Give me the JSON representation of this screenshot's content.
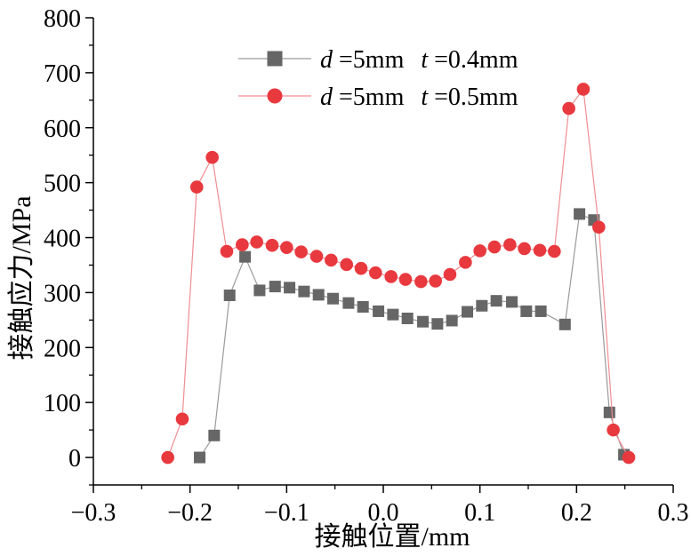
{
  "chart_data": {
    "type": "line",
    "xlabel": "接触位置/mm",
    "ylabel": "接触应力/MPa",
    "xlim": [
      -0.3,
      0.3
    ],
    "ylim": [
      -50,
      800
    ],
    "xticks": [
      "−0.3",
      "−0.2",
      "−0.1",
      "0.0",
      "0.1",
      "0.2",
      "0.3"
    ],
    "yticks": [
      "0",
      "100",
      "200",
      "300",
      "400",
      "500",
      "600",
      "700",
      "800"
    ],
    "legend_position": "top-center",
    "grid": false,
    "series": [
      {
        "name": "d=5mm  t=0.4mm",
        "name_parts": {
          "var1": "d",
          "eq1": "=5mm",
          "var2": "t",
          "eq2": "=0.4mm"
        },
        "color": "#666666",
        "marker": "square",
        "x": [
          -0.19,
          -0.175,
          -0.159,
          -0.143,
          -0.128,
          -0.112,
          -0.097,
          -0.082,
          -0.067,
          -0.052,
          -0.036,
          -0.021,
          -0.005,
          0.01,
          0.025,
          0.041,
          0.056,
          0.071,
          0.087,
          0.102,
          0.117,
          0.133,
          0.148,
          0.163,
          0.188,
          0.203,
          0.218,
          0.234,
          0.249
        ],
        "y": [
          0,
          40,
          295,
          365,
          304,
          311,
          309,
          302,
          296,
          289,
          281,
          274,
          266,
          260,
          253,
          247,
          243,
          249,
          265,
          276,
          285,
          283,
          266,
          266,
          242,
          443,
          432,
          82,
          5
        ]
      },
      {
        "name": "d=5mm  t=0.5mm",
        "name_parts": {
          "var1": "d",
          "eq1": "=5mm",
          "var2": "t",
          "eq2": "=0.5mm"
        },
        "color": "#e8393f",
        "marker": "circle",
        "x": [
          -0.223,
          -0.208,
          -0.193,
          -0.177,
          -0.162,
          -0.146,
          -0.131,
          -0.115,
          -0.1,
          -0.085,
          -0.069,
          -0.054,
          -0.038,
          -0.023,
          -0.008,
          0.008,
          0.023,
          0.039,
          0.054,
          0.069,
          0.085,
          0.1,
          0.115,
          0.131,
          0.146,
          0.162,
          0.177,
          0.192,
          0.207,
          0.223,
          0.238,
          0.254
        ],
        "y": [
          0,
          70,
          492,
          546,
          375,
          387,
          392,
          386,
          382,
          374,
          366,
          359,
          351,
          344,
          336,
          329,
          324,
          320,
          321,
          333,
          355,
          376,
          383,
          387,
          380,
          377,
          375,
          635,
          670,
          419,
          50,
          0
        ]
      }
    ]
  }
}
